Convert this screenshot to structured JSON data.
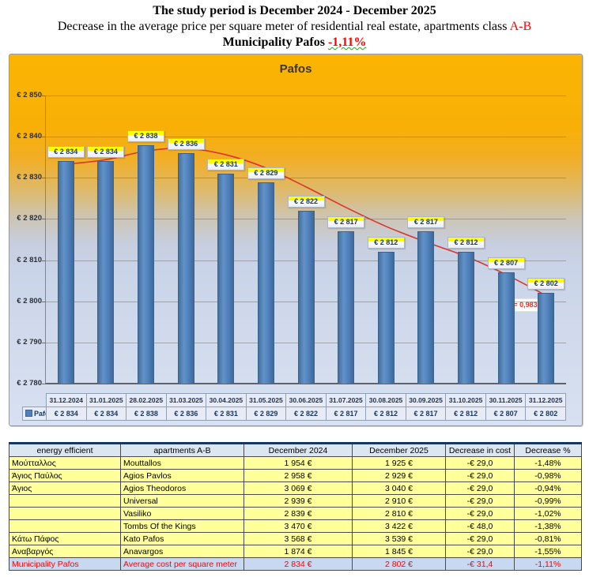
{
  "header": {
    "line1": "The study period is December 2024 - December 2025",
    "line2_prefix": "Decrease in the average price per square meter of residential real estate, apartments class ",
    "line2_highlight": "A-B",
    "line3_prefix": "Municipality Pafos ",
    "line3_highlight": "-1,11%"
  },
  "chart_data": {
    "type": "bar",
    "title": "Pafos",
    "legend": "Pafos",
    "categories": [
      "31.12.2024",
      "31.01.2025",
      "28.02.2025",
      "31.03.2025",
      "30.04.2025",
      "31.05.2025",
      "30.06.2025",
      "31.07.2025",
      "30.08.2025",
      "30.09.2025",
      "31.10.2025",
      "30.11.2025",
      "31.12.2025"
    ],
    "values": [
      2834,
      2834,
      2838,
      2836,
      2831,
      2829,
      2822,
      2817,
      2812,
      2817,
      2812,
      2807,
      2802
    ],
    "value_labels": [
      "€ 2 834",
      "€ 2 834",
      "€ 2 838",
      "€ 2 836",
      "€ 2 831",
      "€ 2 829",
      "€ 2 822",
      "€ 2 817",
      "€ 2 812",
      "€ 2 817",
      "€ 2 812",
      "€ 2 807",
      "€ 2 802"
    ],
    "trend_values": [
      2833.3,
      2834.4,
      2836.5,
      2837.2,
      2835.6,
      2832.4,
      2827.8,
      2822.8,
      2818.2,
      2814.4,
      2810.9,
      2806.5,
      2801.4
    ],
    "r_squared_label": "R² = 0,9836",
    "ylim": [
      2780,
      2850
    ],
    "y_ticks": [
      "€ 2 850",
      "€ 2 840",
      "€ 2 830",
      "€ 2 820",
      "€ 2 810",
      "€ 2 800",
      "€ 2 790",
      "€ 2 780"
    ],
    "grid": true,
    "legend_position": "bottom-data-table",
    "bar_color": "#4F81BD",
    "trend_color": "#D9352A",
    "label_fill_top": "#FFFF00"
  },
  "table": {
    "headers": [
      "energy efficient",
      "apartments A-B",
      "December 2024",
      "December 2025",
      "Decrease in cost",
      "Decrease %"
    ],
    "rows": [
      [
        "Μούτταλλος",
        "Mouttallos",
        "1 954 €",
        "1 925 €",
        "-€ 29,0",
        "-1,48%"
      ],
      [
        "Άγιος Παύλος",
        "Agios Pavlos",
        "2 958 €",
        "2 929 €",
        "-€ 29,0",
        "-0,98%"
      ],
      [
        "Άγιος",
        "Agios Theodoros",
        "3 069 €",
        "3 040 €",
        "-€ 29,0",
        "-0,94%"
      ],
      [
        "",
        "Universal",
        "2 939 €",
        "2 910 €",
        "-€ 29,0",
        "-0,99%"
      ],
      [
        "",
        "Vasiliko",
        "2 839 €",
        "2 810 €",
        "-€ 29,0",
        "-1,02%"
      ],
      [
        "",
        "Tombs Of the Kings",
        "3 470 €",
        "3 422 €",
        "-€ 48,0",
        "-1,38%"
      ],
      [
        "Κάτω Πάφος",
        "Kato Pafos",
        "3 568 €",
        "3 539 €",
        "-€ 29,0",
        "-0,81%"
      ],
      [
        "Αναβαργός",
        "Anavargos",
        "1 874 €",
        "1 845 €",
        "-€ 29,0",
        "-1,55%"
      ]
    ],
    "summary_row": [
      "Municipality Pafos",
      "Average cost per square meter",
      "2 834 €",
      "2 802 €",
      "-€ 31,4",
      "-1,11%"
    ]
  }
}
